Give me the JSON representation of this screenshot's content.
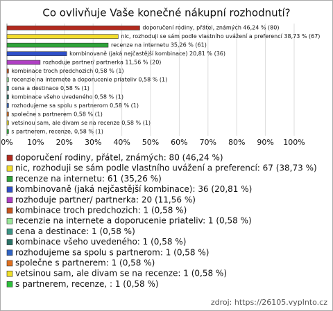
{
  "chart_data": {
    "type": "bar",
    "orientation": "horizontal",
    "title": "Co ovlivňuje Vaše konečné nákupní rozhodnutí?",
    "values": [
      46.24,
      38.73,
      35.26,
      20.81,
      11.56,
      0.58,
      0.58,
      0.58,
      0.58,
      0.58,
      0.58,
      0.58,
      0.58
    ],
    "value_labels": [
      "doporučení rodiny, přátel, známých 46,24 % (80)",
      "nic, rozhoduji se sám podle vlastního uvážení a preferencí 38,73 % (67)",
      "recenze na internetu 35,26 % (61)",
      "kombinovaně (jaká nejčastější kombinace) 20,81 % (36)",
      "rozhoduje partner/ partnerka 11,56 % (20)",
      "kombinace troch predchozich 0,58 % (1)",
      "recenzie na internete a doporucenie priateliv 0,58 % (1)",
      "cena a destinace 0,58 % (1)",
      "kombinace všeho uvedeného 0,58 % (1)",
      "rozhodujeme sa spolu s partnerom 0,58 % (1)",
      "společne s partnerem 0,58 % (1)",
      "vetsinou sam, ale divam se na recenze 0,58 % (1)",
      "s partnerem, recenze,  0,58 % (1)"
    ],
    "legend_labels": [
      "doporučení rodiny, přátel, známých: 80 (46,24 %)",
      "nic, rozhoduji se sám podle vlastního uvážení a preferencí: 67 (38,73 %)",
      "recenze na internetu: 61 (35,26 %)",
      "kombinovaně (jaká nejčastější kombinace): 36 (20,81 %)",
      "rozhoduje partner/ partnerka: 20 (11,56 %)",
      "kombinace troch predchozich: 1 (0,58 %)",
      "recenzie na internete a doporucenie priateliv: 1 (0,58 %)",
      "cena a destinace: 1 (0,58 %)",
      "kombinace všeho uvedeného: 1 (0,58 %)",
      "rozhodujeme sa spolu s partnerom: 1 (0,58 %)",
      "společne s partnerem: 1 (0,58 %)",
      "vetsinou sam, ale divam se na recenze: 1 (0,58 %)",
      "s partnerem, recenze, : 1 (0,58 %)"
    ],
    "colors": [
      "#b22a1e",
      "#f2dc2c",
      "#2fa43a",
      "#2f4fc8",
      "#b03fc4",
      "#c8561e",
      "#98e898",
      "#3a9484",
      "#2a7468",
      "#3064c4",
      "#e0701e",
      "#f0e028",
      "#2cc03a"
    ],
    "xlim": [
      0,
      100
    ],
    "xticks": [
      {
        "value": 0,
        "label": "0%"
      },
      {
        "value": 10,
        "label": "10%"
      },
      {
        "value": 20,
        "label": "20%"
      },
      {
        "value": 30,
        "label": "30%"
      },
      {
        "value": 40,
        "label": "40%"
      },
      {
        "value": 50,
        "label": "50%"
      },
      {
        "value": 60,
        "label": "60%"
      },
      {
        "value": 70,
        "label": "70%"
      },
      {
        "value": 80,
        "label": "80%"
      },
      {
        "value": 90,
        "label": "90%"
      },
      {
        "value": 100,
        "label": "100%"
      }
    ],
    "grid": true,
    "source": "zdroj: https://26105.vyplnto.cz"
  }
}
